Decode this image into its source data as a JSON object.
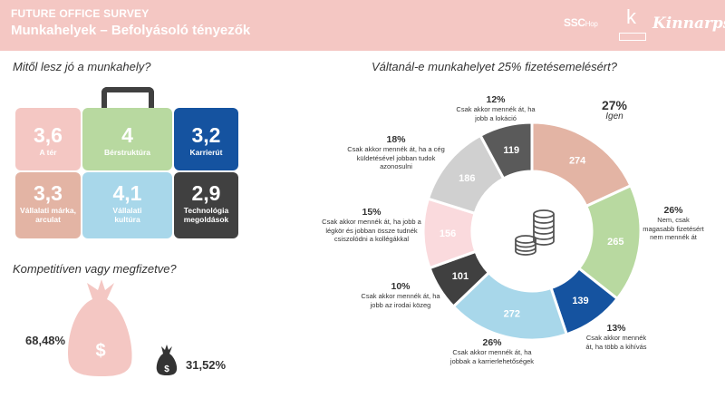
{
  "header": {
    "title_line1": "FUTURE OFFICE SURVEY",
    "title_line2": "Munkahelyek – Befolyásoló tényezők",
    "bg_color": "#f4c7c3",
    "logos": {
      "ssc_main": "SSC",
      "ssc_small": "Hop",
      "k_letter": "k",
      "k_box": "",
      "kinnarps": "Kinnarps"
    }
  },
  "section1": {
    "title": "Mitől lesz jó a munkahely?",
    "tiles": [
      {
        "value": "3,6",
        "label": "A tér",
        "color": "#f4c7c3"
      },
      {
        "value": "4",
        "label": "Bérstruktúra",
        "color": "#b8d9a0"
      },
      {
        "value": "3,2",
        "label": "Karrierút",
        "color": "#1553a0"
      },
      {
        "value": "3,3",
        "label": "Vállalati márka, arculat",
        "color": "#e3b4a4"
      },
      {
        "value": "4,1",
        "label": "Vállalati kultúra",
        "color": "#a8d7ea"
      },
      {
        "value": "2,9",
        "label": "Technológia megoldások",
        "color": "#404040"
      }
    ]
  },
  "section2": {
    "title": "Kompetitíven vagy megfizetve?",
    "pct_left": "68,48%",
    "pct_right": "31,52%",
    "bag_large_color": "#f4c7c3",
    "bag_small_color": "#333333",
    "bag_symbol": "$"
  },
  "section3": {
    "title": "Váltanál-e munkahelyet 25% fizetésemelésért?"
  },
  "chart_data": {
    "type": "pie",
    "donut": true,
    "title": "Váltanál-e munkahelyet 25% fizetésemelésért?",
    "center_icon": "coins-icon",
    "segments": [
      {
        "value": 274,
        "label_value": "274",
        "percent": "27%",
        "description": "Igen",
        "color": "#e3b4a4"
      },
      {
        "value": 265,
        "label_value": "265",
        "percent": "26%",
        "description": "Nem, csak magasabb fizetésért nem mennék át",
        "color": "#b8d9a0"
      },
      {
        "value": 139,
        "label_value": "139",
        "percent": "13%",
        "description": "Csak akkor mennék át, ha több a kihívás",
        "color": "#1553a0"
      },
      {
        "value": 272,
        "label_value": "272",
        "percent": "26%",
        "description": "Csak akkor mennék át, ha jobbak a karrierlehetőségek",
        "color": "#a8d7ea"
      },
      {
        "value": 101,
        "label_value": "101",
        "percent": "10%",
        "description": "Csak akkor mennék át, ha jobb az irodai közeg",
        "color": "#404040"
      },
      {
        "value": 156,
        "label_value": "156",
        "percent": "15%",
        "description": "Csak akkor mennék át, ha jobb a légkör és jobban össze tudnék csiszolódni a kollégákkal",
        "color": "#fadadd"
      },
      {
        "value": 186,
        "label_value": "186",
        "percent": "18%",
        "description": "Csak akkor mennék át, ha a cég küldetésével jobban tudok azonosulni",
        "color": "#d0d0d0"
      },
      {
        "value": 119,
        "label_value": "119",
        "percent": "12%",
        "description": "Csak akkor mennék át, ha jobb a lokáció",
        "color": "#5a5a5a"
      }
    ]
  }
}
